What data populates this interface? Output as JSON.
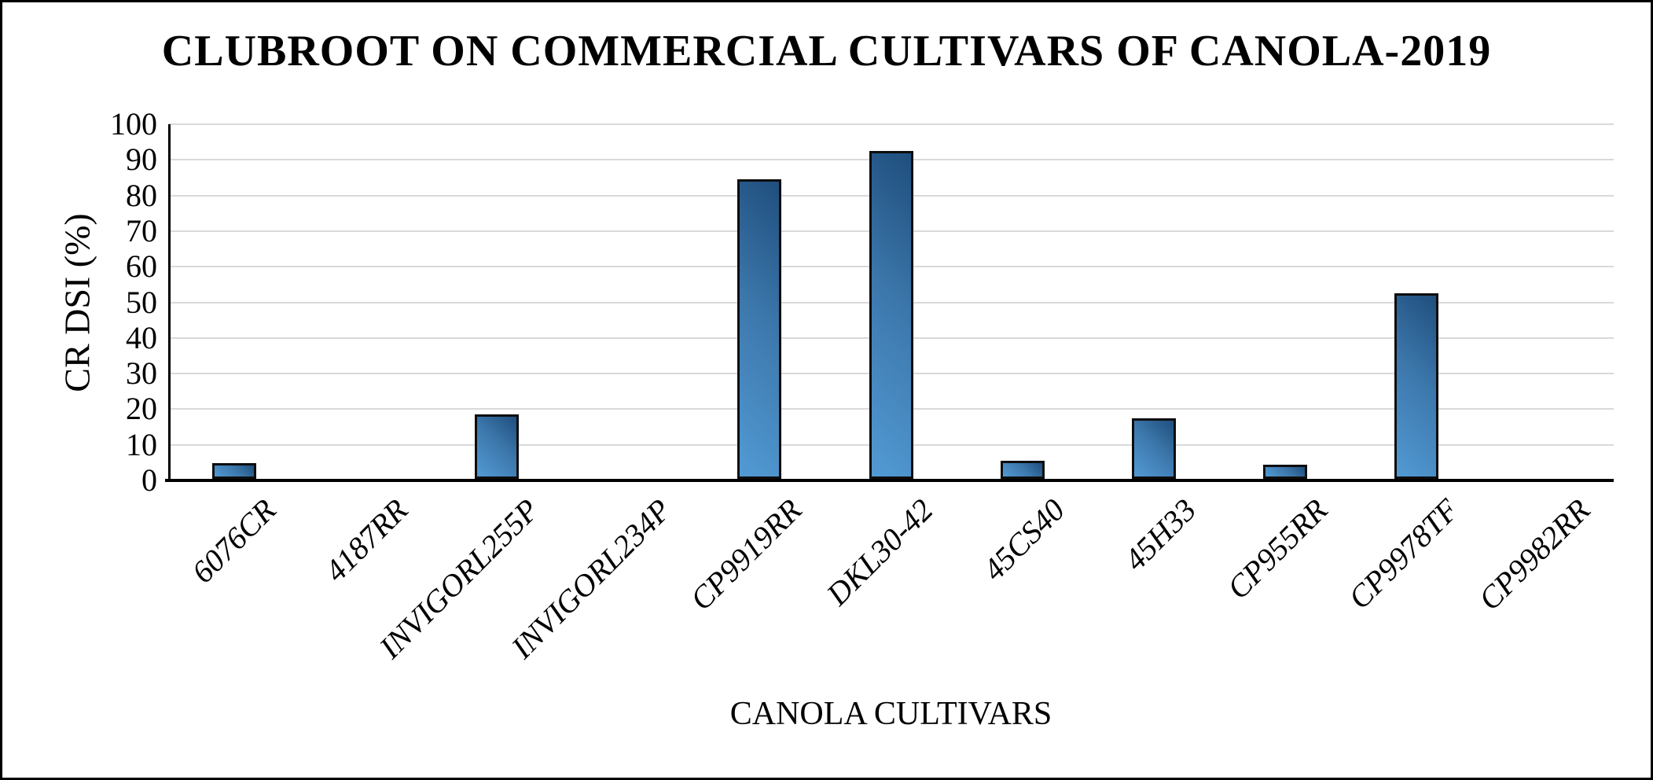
{
  "chart_data": {
    "type": "bar",
    "title": "CLUBROOT ON COMMERCIAL CULTIVARS OF CANOLA-2019",
    "xlabel": "CANOLA CULTIVARS",
    "ylabel": "CR DSI (%)",
    "categories": [
      "6076CR",
      "4187RR",
      "INVIGORL255P",
      "INVIGORL234P",
      "CP9919RR",
      "DKL30-42",
      "45CS40",
      "45H33",
      "CP955RR",
      "CP9978TF",
      "CP9982RR"
    ],
    "values": [
      4.5,
      0,
      18,
      0,
      84,
      92,
      5,
      17,
      4,
      52,
      0
    ],
    "ylim": [
      0,
      100
    ],
    "yticks": [
      0,
      10,
      20,
      30,
      40,
      50,
      60,
      70,
      80,
      90,
      100
    ],
    "grid": "horizontal-gridlines",
    "legend": "none",
    "colors": {
      "bar_fill_light": "#529ad4",
      "bar_fill_dark": "#1f4e7d",
      "bar_outline": "#0d0d0d",
      "gridline": "#d9d9d9",
      "axis": "#000000",
      "text": "#000000",
      "background": "#ffffff",
      "frame_border": "#000000"
    }
  }
}
